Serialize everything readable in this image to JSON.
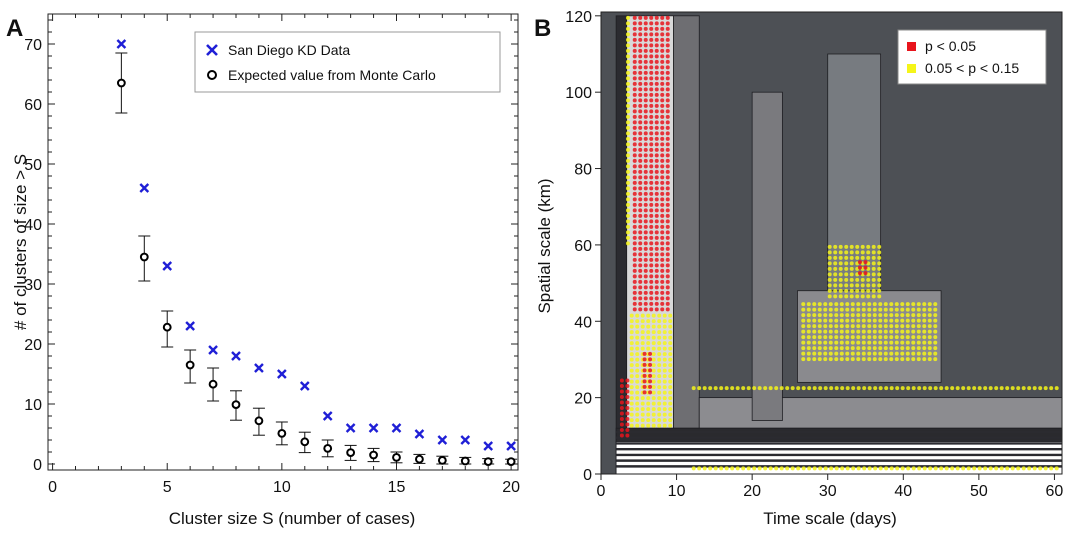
{
  "chart_data": [
    {
      "panel_label": "A",
      "type": "scatter",
      "xlabel": "Cluster size S (number of cases)",
      "ylabel": "# of clusters of size > S",
      "xlim": [
        -0.2,
        20.3
      ],
      "ylim": [
        -1,
        75
      ],
      "xticks": [
        0,
        5,
        10,
        15,
        20
      ],
      "yticks": [
        0,
        10,
        20,
        30,
        40,
        50,
        60,
        70
      ],
      "legend_position": "top-right",
      "series": [
        {
          "name": "San Diego KD Data",
          "marker": "x",
          "color": "#1f1fd6",
          "points": [
            [
              3,
              70
            ],
            [
              4,
              46
            ],
            [
              5,
              33
            ],
            [
              6,
              23
            ],
            [
              7,
              19
            ],
            [
              8,
              18
            ],
            [
              9,
              16
            ],
            [
              10,
              15
            ],
            [
              11,
              13
            ],
            [
              12,
              8
            ],
            [
              13,
              6
            ],
            [
              14,
              6
            ],
            [
              15,
              6
            ],
            [
              16,
              5
            ],
            [
              17,
              4
            ],
            [
              18,
              4
            ],
            [
              19,
              3
            ],
            [
              20,
              3
            ]
          ]
        },
        {
          "name": "Expected value from Monte Carlo",
          "marker": "open-circle",
          "color": "#000000",
          "points": [
            {
              "x": 3,
              "y": 63.5,
              "lo": 58.5,
              "hi": 68.5
            },
            {
              "x": 4,
              "y": 34.5,
              "lo": 30.5,
              "hi": 38
            },
            {
              "x": 5,
              "y": 22.8,
              "lo": 19.5,
              "hi": 25.5
            },
            {
              "x": 6,
              "y": 16.5,
              "lo": 13.5,
              "hi": 19
            },
            {
              "x": 7,
              "y": 13.3,
              "lo": 10.5,
              "hi": 16
            },
            {
              "x": 8,
              "y": 9.9,
              "lo": 7.3,
              "hi": 12.2
            },
            {
              "x": 9,
              "y": 7.2,
              "lo": 4.8,
              "hi": 9.3
            },
            {
              "x": 10,
              "y": 5.1,
              "lo": 3.2,
              "hi": 7
            },
            {
              "x": 11,
              "y": 3.7,
              "lo": 1.9,
              "hi": 5.3
            },
            {
              "x": 12,
              "y": 2.6,
              "lo": 1.2,
              "hi": 4
            },
            {
              "x": 13,
              "y": 1.9,
              "lo": 0.6,
              "hi": 3.1
            },
            {
              "x": 14,
              "y": 1.5,
              "lo": 0.4,
              "hi": 2.6
            },
            {
              "x": 15,
              "y": 1.1,
              "lo": 0.2,
              "hi": 2
            },
            {
              "x": 16,
              "y": 0.8,
              "lo": 0.1,
              "hi": 1.6
            },
            {
              "x": 17,
              "y": 0.6,
              "lo": 0,
              "hi": 1.3
            },
            {
              "x": 18,
              "y": 0.5,
              "lo": 0,
              "hi": 1.1
            },
            {
              "x": 19,
              "y": 0.4,
              "lo": 0,
              "hi": 0.9
            },
            {
              "x": 20,
              "y": 0.4,
              "lo": 0,
              "hi": 0.8
            }
          ]
        }
      ]
    },
    {
      "panel_label": "B",
      "type": "heatmap",
      "xlabel": "Time scale (days)",
      "ylabel": "Spatial scale (km)",
      "xlim": [
        0,
        61
      ],
      "ylim": [
        0,
        121
      ],
      "xticks": [
        0,
        10,
        20,
        30,
        40,
        50,
        60
      ],
      "yticks": [
        0,
        20,
        40,
        60,
        80,
        100,
        120
      ],
      "legend_position": "top-right",
      "legend": [
        {
          "label": "p < 0.05",
          "color": "#e8141c"
        },
        {
          "label": "0.05 < p < 0.15",
          "color": "#f5f519"
        }
      ],
      "background_color": "#4d5055",
      "bands": [
        {
          "x0": 2,
          "x1": 3.4,
          "y0": 0,
          "y1": 120,
          "color": "#2b2b30"
        },
        {
          "x0": 3.4,
          "x1": 9.6,
          "y0": 12,
          "y1": 120,
          "color": "#d9d9d9"
        },
        {
          "x0": 9.6,
          "x1": 13,
          "y0": 12,
          "y1": 120,
          "color": "#6e6e72"
        },
        {
          "x0": 13,
          "x1": 61,
          "y0": 12,
          "y1": 20,
          "color": "#8c8c90"
        },
        {
          "x0": 20,
          "x1": 24,
          "y0": 14,
          "y1": 100,
          "color": "#7a7a7e"
        },
        {
          "x0": 26,
          "x1": 45,
          "y0": 24,
          "y1": 48,
          "color": "#8a8a8e"
        },
        {
          "x0": 30,
          "x1": 37,
          "y0": 48,
          "y1": 110,
          "color": "#777b80"
        },
        {
          "x0": 2,
          "x1": 61,
          "y0": 8.5,
          "y1": 12,
          "color": "#2a2a2e"
        },
        {
          "x0": 2,
          "x1": 61,
          "y0": 0,
          "y1": 8.5,
          "color": "#ffffff"
        }
      ],
      "contour_lines_y": [
        2,
        3.5,
        5,
        6.5,
        8,
        9.5,
        11
      ],
      "significant_cells": [
        {
          "x0": 2.5,
          "x1": 3.5,
          "y0": 10,
          "y1": 25,
          "level": "p<0.05"
        },
        {
          "x0": 3.3,
          "x1": 4.2,
          "y0": 60,
          "y1": 120,
          "level": "0.05<p<0.15"
        },
        {
          "x0": 4.2,
          "x1": 8.9,
          "y0": 42,
          "y1": 120,
          "level": "p<0.05"
        },
        {
          "x0": 3.8,
          "x1": 9.6,
          "y0": 12,
          "y1": 42,
          "level": "0.05<p<0.15"
        },
        {
          "x0": 5.5,
          "x1": 7,
          "y0": 20,
          "y1": 32,
          "level": "p<0.05"
        },
        {
          "x0": 26.5,
          "x1": 44.5,
          "y0": 30,
          "y1": 45,
          "level": "0.05<p<0.15"
        },
        {
          "x0": 30,
          "x1": 37,
          "y0": 46,
          "y1": 60,
          "level": "0.05<p<0.15"
        },
        {
          "x0": 34,
          "x1": 35.5,
          "y0": 52,
          "y1": 56,
          "level": "p<0.05"
        },
        {
          "x0": 12,
          "x1": 61,
          "y0": 21.5,
          "y1": 23,
          "level": "0.05<p<0.15"
        },
        {
          "x0": 12,
          "x1": 61,
          "y0": 1,
          "y1": 2,
          "level": "0.05<p<0.15"
        }
      ]
    }
  ]
}
